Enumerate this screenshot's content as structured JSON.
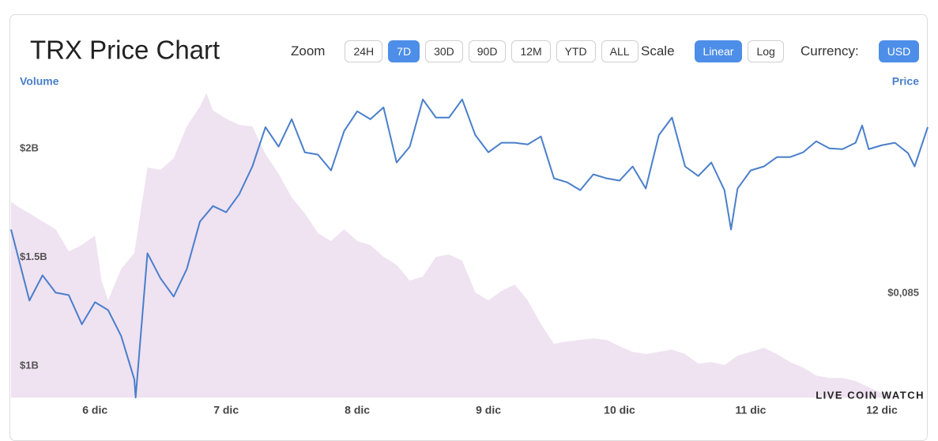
{
  "chart_data": {
    "type": "line",
    "title": "TRX Price Chart",
    "ylabel": "Volume",
    "y2label": "Price",
    "logo": "LIVE COIN WATCH",
    "controls": {
      "zoom_label": "Zoom",
      "zoom_options": [
        "24H",
        "7D",
        "30D",
        "90D",
        "12M",
        "YTD",
        "ALL"
      ],
      "zoom_selected": 1,
      "scale_label": "Scale",
      "scale_options": [
        "Linear",
        "Log"
      ],
      "scale_selected": 0,
      "currency_label": "Currency:",
      "currency_options": [
        "USD"
      ],
      "currency_selected": 0
    },
    "xlim": [
      5.36,
      12.35
    ],
    "xticks": [
      {
        "value": 6,
        "label": "6 dic"
      },
      {
        "value": 7,
        "label": "7 dic"
      },
      {
        "value": 8,
        "label": "8 dic"
      },
      {
        "value": 9,
        "label": "9 dic"
      },
      {
        "value": 10,
        "label": "10 dic"
      },
      {
        "value": 11,
        "label": "11 dic"
      },
      {
        "value": 12,
        "label": "12 dic"
      }
    ],
    "ylim": [
      0.855,
      2.32
    ],
    "yticks": [
      {
        "value": 1,
        "label": "$1B"
      },
      {
        "value": 1.5,
        "label": "$1.5B"
      },
      {
        "value": 2,
        "label": "$2B"
      }
    ],
    "y2lim": [
      0.08,
      0.0953
    ],
    "y2ticks": [
      {
        "value": 0.085,
        "label": "$0,085"
      }
    ],
    "grid": false,
    "series": [
      {
        "name": "Volume",
        "type": "area",
        "color": "#efe2f1",
        "x": [
          5.36,
          5.4,
          5.5,
          5.6,
          5.7,
          5.8,
          5.9,
          6.0,
          6.05,
          6.1,
          6.2,
          6.3,
          6.4,
          6.5,
          6.6,
          6.7,
          6.8,
          6.85,
          6.9,
          7.0,
          7.1,
          7.2,
          7.3,
          7.4,
          7.5,
          7.6,
          7.7,
          7.8,
          7.9,
          8.0,
          8.1,
          8.2,
          8.3,
          8.4,
          8.5,
          8.6,
          8.7,
          8.8,
          8.9,
          9.0,
          9.1,
          9.2,
          9.3,
          9.4,
          9.5,
          9.6,
          9.7,
          9.8,
          9.9,
          10.0,
          10.1,
          10.2,
          10.3,
          10.4,
          10.5,
          10.6,
          10.7,
          10.8,
          10.9,
          11.0,
          11.1,
          11.2,
          11.3,
          11.4,
          11.5,
          11.6,
          11.7,
          11.8,
          11.9,
          12.0,
          12.1
        ],
        "values": [
          1.756,
          1.738,
          1.702,
          1.665,
          1.629,
          1.527,
          1.556,
          1.6,
          1.393,
          1.302,
          1.447,
          1.52,
          1.913,
          1.902,
          1.956,
          2.102,
          2.193,
          2.255,
          2.175,
          2.138,
          2.109,
          2.102,
          1.975,
          1.884,
          1.775,
          1.702,
          1.611,
          1.575,
          1.629,
          1.575,
          1.556,
          1.502,
          1.465,
          1.393,
          1.411,
          1.502,
          1.513,
          1.484,
          1.338,
          1.302,
          1.345,
          1.375,
          1.302,
          1.193,
          1.102,
          1.113,
          1.12,
          1.127,
          1.12,
          1.091,
          1.065,
          1.055,
          1.065,
          1.076,
          1.055,
          1.011,
          1.018,
          1.004,
          1.047,
          1.065,
          1.084,
          1.055,
          1.018,
          0.993,
          0.956,
          0.945,
          0.945,
          0.931,
          0.902,
          0.876,
          0.855
        ]
      },
      {
        "name": "Price",
        "type": "line",
        "axis": "y2",
        "color": "#4a7fcb",
        "x": [
          5.36,
          5.5,
          5.6,
          5.7,
          5.8,
          5.9,
          6.0,
          6.1,
          6.2,
          6.3,
          6.31,
          6.4,
          6.5,
          6.6,
          6.7,
          6.8,
          6.9,
          7.0,
          7.1,
          7.2,
          7.3,
          7.4,
          7.5,
          7.6,
          7.7,
          7.8,
          7.9,
          8.0,
          8.1,
          8.2,
          8.3,
          8.4,
          8.5,
          8.6,
          8.7,
          8.8,
          8.9,
          9.0,
          9.1,
          9.2,
          9.3,
          9.4,
          9.5,
          9.6,
          9.7,
          9.8,
          9.9,
          10.0,
          10.1,
          10.2,
          10.3,
          10.4,
          10.5,
          10.6,
          10.7,
          10.8,
          10.85,
          10.9,
          11.0,
          11.1,
          11.2,
          11.3,
          11.4,
          11.5,
          11.6,
          11.7,
          11.8,
          11.85,
          11.9,
          12.0,
          12.1,
          12.2,
          12.25,
          12.35
        ],
        "values": [
          0.08807,
          0.08466,
          0.08587,
          0.08504,
          0.08492,
          0.08352,
          0.08458,
          0.0842,
          0.08295,
          0.08087,
          0.08,
          0.08693,
          0.08572,
          0.08485,
          0.08617,
          0.08845,
          0.0892,
          0.0889,
          0.08977,
          0.0911,
          0.09299,
          0.09205,
          0.09337,
          0.09178,
          0.09167,
          0.09091,
          0.0928,
          0.09375,
          0.09337,
          0.09394,
          0.09129,
          0.09205,
          0.09432,
          0.09345,
          0.09345,
          0.09432,
          0.09261,
          0.09178,
          0.09224,
          0.09224,
          0.09216,
          0.09254,
          0.09053,
          0.09034,
          0.08996,
          0.09072,
          0.09053,
          0.09042,
          0.0911,
          0.09004,
          0.09261,
          0.09345,
          0.0911,
          0.09064,
          0.09129,
          0.08996,
          0.08807,
          0.09004,
          0.09091,
          0.0911,
          0.09155,
          0.09155,
          0.09178,
          0.09231,
          0.09197,
          0.09193,
          0.09224,
          0.09307,
          0.09193,
          0.09212,
          0.09224,
          0.09174,
          0.0911,
          0.09299
        ]
      }
    ]
  }
}
